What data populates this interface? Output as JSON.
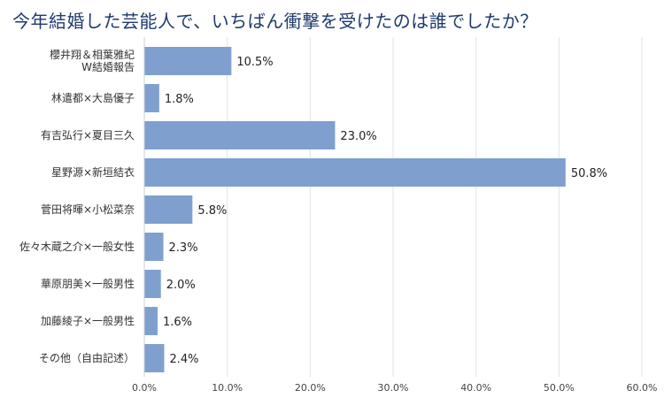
{
  "title": "今年結婚した芸能人で、いちばん衝撃を受けたのは誰でしたか？",
  "colors": {
    "bar": "#7fa0cf",
    "grid": "#dfe3ea",
    "title": "#1f3a6e"
  },
  "chart_data": {
    "type": "bar",
    "orientation": "horizontal",
    "categories": [
      [
        "櫻井翔＆相葉雅紀",
        "W結婚報告"
      ],
      [
        "林遣都×大島優子"
      ],
      [
        "有吉弘行×夏目三久"
      ],
      [
        "星野源×新垣結衣"
      ],
      [
        "菅田将暉×小松菜奈"
      ],
      [
        "佐々木蔵之介×一般女性"
      ],
      [
        "華原朋美×一般男性"
      ],
      [
        "加藤綾子×一般男性"
      ],
      [
        "その他（自由記述）"
      ]
    ],
    "values": [
      10.5,
      1.8,
      23.0,
      50.8,
      5.8,
      2.3,
      2.0,
      1.6,
      2.4
    ],
    "value_labels": [
      "10.5%",
      "1.8%",
      "23.0%",
      "50.8%",
      "5.8%",
      "2.3%",
      "2.0%",
      "1.6%",
      "2.4%"
    ],
    "xlim": [
      0,
      60
    ],
    "xticks": [
      "0.0%",
      "10.0%",
      "20.0%",
      "30.0%",
      "40.0%",
      "50.0%",
      "60.0%"
    ],
    "grid": true,
    "legend": false
  }
}
